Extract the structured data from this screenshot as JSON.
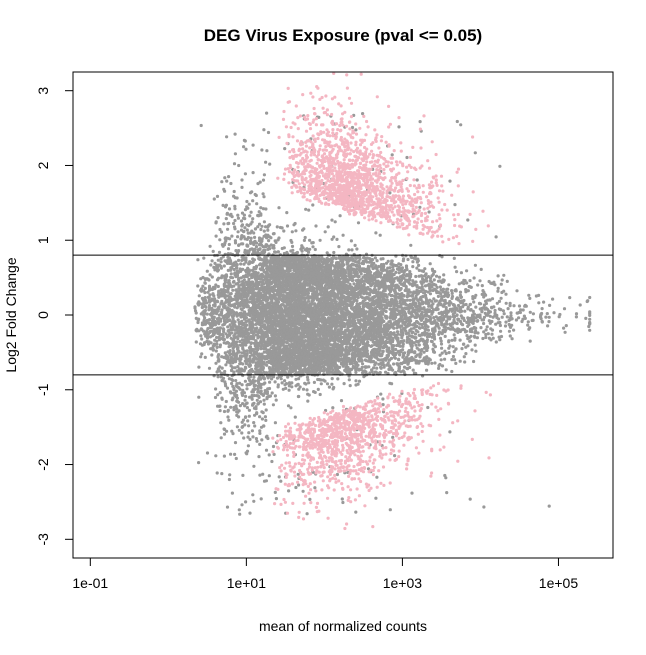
{
  "chart_data": {
    "type": "scatter",
    "title": "DEG Virus Exposure  (pval <= 0.05)",
    "xlabel": "mean of normalized counts",
    "ylabel": "Log2 Fold Change",
    "x_scale": "log10",
    "x_ticks": [
      0.1,
      10,
      1000,
      100000
    ],
    "x_tick_labels": [
      "1e-01",
      "1e+01",
      "1e+03",
      "1e+05"
    ],
    "xlim": [
      0.06,
      500000
    ],
    "y_ticks": [
      -3,
      -2,
      -1,
      0,
      1,
      2,
      3
    ],
    "y_tick_labels": [
      "-3",
      "-2",
      "-1",
      "0",
      "1",
      "2",
      "3"
    ],
    "ylim": [
      -3.25,
      3.25
    ],
    "hlines": [
      0.8,
      -0.8
    ],
    "colors": {
      "not_significant": "#999999",
      "significant": "#f4b6c2",
      "reference_lines": "#000000"
    },
    "legend": "none",
    "grid": false,
    "point_summary": {
      "not_significant": {
        "approx_count": 9000,
        "x_range": [
          0.1,
          300000
        ],
        "y_range": [
          -3.2,
          3.1
        ],
        "densest_region": {
          "x": [
            3,
            5000
          ],
          "y": [
            -1.2,
            1.2
          ]
        }
      },
      "significant_up": {
        "approx_count": 1500,
        "x_range": [
          10,
          20000
        ],
        "y_range": [
          0.8,
          3.2
        ],
        "densest_region": {
          "x": [
            30,
            1000
          ],
          "y": [
            1.0,
            2.2
          ]
        }
      },
      "significant_down": {
        "approx_count": 1100,
        "x_range": [
          10,
          20000
        ],
        "y_range": [
          -3.2,
          -0.8
        ],
        "densest_region": {
          "x": [
            20,
            800
          ],
          "y": [
            -2.0,
            -1.0
          ]
        }
      }
    }
  }
}
